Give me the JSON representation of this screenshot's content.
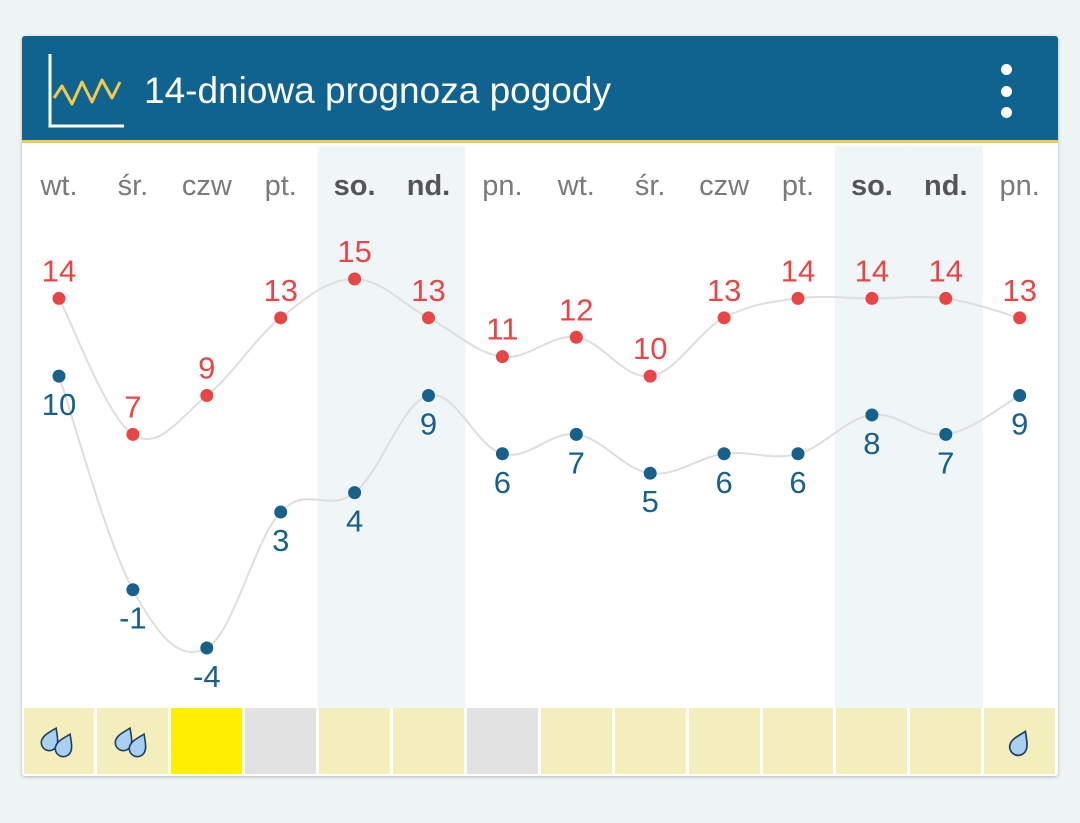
{
  "header": {
    "title": "14-dniowa prognoza pogody",
    "icon": "line-chart-icon",
    "menu_icon": "more-vertical-icon"
  },
  "colors": {
    "header_bg": "#10638e",
    "header_accent": "#f2c94c",
    "max_temp": "#e84646",
    "min_temp": "#17618a",
    "weekend_bg": "#f0f5f8",
    "day_label": "#7a7a7a",
    "weekend_label": "#555555",
    "line": "#dedede"
  },
  "chart_data": {
    "type": "line",
    "categories": [
      "wt.",
      "śr.",
      "czw",
      "pt.",
      "so.",
      "nd.",
      "pn.",
      "wt.",
      "śr.",
      "czw",
      "pt.",
      "so.",
      "nd.",
      "pn."
    ],
    "weekend": [
      false,
      false,
      false,
      false,
      true,
      true,
      false,
      false,
      false,
      false,
      false,
      true,
      true,
      false
    ],
    "series": [
      {
        "values": [
          14,
          7,
          9,
          13,
          15,
          13,
          11,
          12,
          10,
          13,
          14,
          14,
          14,
          13
        ],
        "color": "#e84646"
      },
      {
        "values": [
          10,
          -1,
          -4,
          3,
          4,
          9,
          6,
          7,
          5,
          6,
          6,
          8,
          7,
          9
        ],
        "color": "#17618a"
      }
    ],
    "ylim": [
      -4,
      15
    ],
    "grid": false,
    "precipitation": [
      {
        "type": "drops2",
        "color": "#f4eebc"
      },
      {
        "type": "drops2",
        "color": "#f4eebc"
      },
      {
        "type": "none",
        "color": "#ffee00"
      },
      {
        "type": "none",
        "color": "#e2e2e2"
      },
      {
        "type": "none",
        "color": "#f4eebc"
      },
      {
        "type": "none",
        "color": "#f4eebc"
      },
      {
        "type": "none",
        "color": "#e2e2e2"
      },
      {
        "type": "none",
        "color": "#f4eebc"
      },
      {
        "type": "none",
        "color": "#f4eebc"
      },
      {
        "type": "none",
        "color": "#f4eebc"
      },
      {
        "type": "none",
        "color": "#f4eebc"
      },
      {
        "type": "none",
        "color": "#f4eebc"
      },
      {
        "type": "none",
        "color": "#f4eebc"
      },
      {
        "type": "drop1",
        "color": "#f4eebc"
      }
    ]
  }
}
